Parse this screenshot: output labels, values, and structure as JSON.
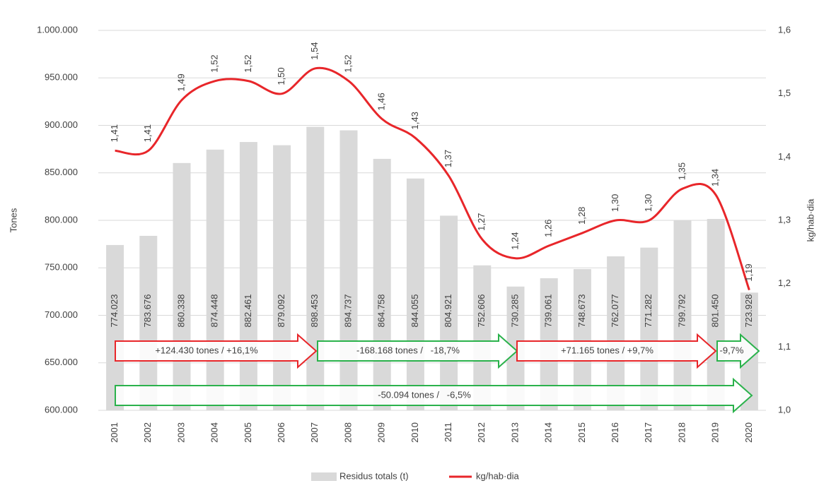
{
  "chart_data": {
    "type": "bar_line",
    "ylabel": "Tones",
    "y2label": "kg/hab·dia",
    "categories": [
      "2001",
      "2002",
      "2003",
      "2004",
      "2005",
      "2006",
      "2007",
      "2008",
      "2009",
      "2010",
      "2011",
      "2012",
      "2013",
      "2014",
      "2015",
      "2016",
      "2017",
      "2018",
      "2019",
      "2020"
    ],
    "series": [
      {
        "name": "Residus totals (t)",
        "type": "bar",
        "color": "#d9d9d9",
        "values": [
          774023,
          783676,
          860338,
          874448,
          882461,
          879092,
          898453,
          894737,
          864758,
          844055,
          804921,
          752606,
          730285,
          739061,
          748673,
          762077,
          771282,
          799792,
          801450,
          723928
        ],
        "value_labels": [
          "774.023",
          "783.676",
          "860.338",
          "874.448",
          "882.461",
          "879.092",
          "898.453",
          "894.737",
          "864.758",
          "844.055",
          "804.921",
          "752.606",
          "730.285",
          "739.061",
          "748.673",
          "762.077",
          "771.282",
          "799.792",
          "801.450",
          "723.928"
        ]
      },
      {
        "name": "kg/hab·dia",
        "type": "line",
        "axis": "y2",
        "color": "#e8262a",
        "values": [
          1.41,
          1.41,
          1.49,
          1.52,
          1.52,
          1.5,
          1.54,
          1.52,
          1.46,
          1.43,
          1.37,
          1.27,
          1.24,
          1.26,
          1.28,
          1.3,
          1.3,
          1.35,
          1.34,
          1.19
        ],
        "value_labels": [
          "1,41",
          "1,41",
          "1,49",
          "1,52",
          "1,52",
          "1,50",
          "1,54",
          "1,52",
          "1,46",
          "1,43",
          "1,37",
          "1,27",
          "1,24",
          "1,26",
          "1,28",
          "1,30",
          "1,30",
          "1,35",
          "1,34",
          "1,19"
        ]
      }
    ],
    "ylim": [
      600000,
      1000000
    ],
    "yticks": [
      {
        "value": 600000,
        "label": "600.000"
      },
      {
        "value": 650000,
        "label": "650.000"
      },
      {
        "value": 700000,
        "label": "700.000"
      },
      {
        "value": 750000,
        "label": "750.000"
      },
      {
        "value": 800000,
        "label": "800.000"
      },
      {
        "value": 850000,
        "label": "850.000"
      },
      {
        "value": 900000,
        "label": "900.000"
      },
      {
        "value": 950000,
        "label": "950.000"
      },
      {
        "value": 1000000,
        "label": "1.000.000"
      }
    ],
    "y2lim": [
      1.0,
      1.6
    ],
    "y2ticks": [
      {
        "value": 1.0,
        "label": "1,0"
      },
      {
        "value": 1.1,
        "label": "1,1"
      },
      {
        "value": 1.2,
        "label": "1,2"
      },
      {
        "value": 1.3,
        "label": "1,3"
      },
      {
        "value": 1.4,
        "label": "1,4"
      },
      {
        "value": 1.5,
        "label": "1,5"
      },
      {
        "value": 1.6,
        "label": "1,6"
      }
    ],
    "grid": true,
    "legend": "bottom",
    "annotations": [
      {
        "text": "+124.430 tones / +16,1%",
        "color": "#e8262a"
      },
      {
        "text": "-168.168 tones /   -18,7%",
        "color": "#2bb24c"
      },
      {
        "text": "+71.165 tones / +9,7%",
        "color": "#e8262a"
      },
      {
        "text": "-9,7%",
        "color": "#2bb24c"
      },
      {
        "text": "-50.094 tones /   -6,5%",
        "color": "#2bb24c"
      }
    ]
  }
}
